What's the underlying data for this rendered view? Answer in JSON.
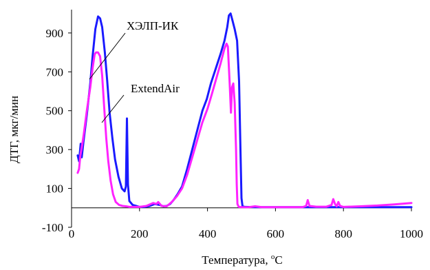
{
  "chart_data": {
    "type": "line",
    "title": "",
    "xlabel": "Температура, ",
    "xlabel_sup": "o",
    "xlabel_unit": "C",
    "ylabel": "ДТГ, мкг/мин",
    "xlim": [
      0,
      1000
    ],
    "ylim": [
      -100,
      1020
    ],
    "xticks": [
      "0",
      "200",
      "400",
      "600",
      "800",
      "1000"
    ],
    "yticks": [
      "-100",
      "100",
      "300",
      "500",
      "700",
      "900"
    ],
    "xtick_values": [
      0,
      200,
      400,
      600,
      800,
      1000
    ],
    "ytick_values": [
      -100,
      100,
      300,
      500,
      700,
      900
    ],
    "grid": false,
    "legend": "inline callouts",
    "series": [
      {
        "name": "ХЭЛП-ИК",
        "color": "#1a1aff",
        "points": [
          [
            18,
            270
          ],
          [
            22,
            240
          ],
          [
            27,
            330
          ],
          [
            30,
            260
          ],
          [
            35,
            340
          ],
          [
            45,
            480
          ],
          [
            55,
            640
          ],
          [
            62,
            780
          ],
          [
            70,
            920
          ],
          [
            78,
            985
          ],
          [
            84,
            975
          ],
          [
            90,
            930
          ],
          [
            98,
            800
          ],
          [
            105,
            650
          ],
          [
            112,
            490
          ],
          [
            120,
            360
          ],
          [
            128,
            250
          ],
          [
            138,
            160
          ],
          [
            148,
            100
          ],
          [
            156,
            85
          ],
          [
            160,
            110
          ],
          [
            163,
            460
          ],
          [
            166,
            120
          ],
          [
            170,
            35
          ],
          [
            180,
            15
          ],
          [
            190,
            10
          ],
          [
            200,
            5
          ],
          [
            215,
            5
          ],
          [
            230,
            10
          ],
          [
            245,
            20
          ],
          [
            260,
            15
          ],
          [
            270,
            8
          ],
          [
            280,
            10
          ],
          [
            290,
            20
          ],
          [
            300,
            40
          ],
          [
            312,
            70
          ],
          [
            325,
            110
          ],
          [
            340,
            200
          ],
          [
            355,
            300
          ],
          [
            370,
            400
          ],
          [
            385,
            500
          ],
          [
            398,
            560
          ],
          [
            410,
            640
          ],
          [
            425,
            720
          ],
          [
            438,
            790
          ],
          [
            450,
            860
          ],
          [
            458,
            930
          ],
          [
            463,
            990
          ],
          [
            468,
            1000
          ],
          [
            474,
            960
          ],
          [
            480,
            920
          ],
          [
            487,
            860
          ],
          [
            493,
            650
          ],
          [
            497,
            300
          ],
          [
            500,
            50
          ],
          [
            503,
            8
          ],
          [
            510,
            5
          ],
          [
            540,
            4
          ],
          [
            600,
            4
          ],
          [
            700,
            4
          ],
          [
            800,
            4
          ],
          [
            900,
            4
          ],
          [
            1000,
            4
          ]
        ]
      },
      {
        "name": "ExtendAir",
        "color": "#ff22ff",
        "points": [
          [
            18,
            180
          ],
          [
            22,
            200
          ],
          [
            26,
            270
          ],
          [
            30,
            310
          ],
          [
            36,
            380
          ],
          [
            45,
            500
          ],
          [
            55,
            620
          ],
          [
            62,
            720
          ],
          [
            68,
            790
          ],
          [
            72,
            800
          ],
          [
            78,
            800
          ],
          [
            84,
            780
          ],
          [
            90,
            680
          ],
          [
            96,
            520
          ],
          [
            102,
            360
          ],
          [
            108,
            240
          ],
          [
            115,
            140
          ],
          [
            122,
            70
          ],
          [
            130,
            30
          ],
          [
            140,
            15
          ],
          [
            150,
            10
          ],
          [
            160,
            8
          ],
          [
            170,
            5
          ],
          [
            200,
            5
          ],
          [
            220,
            10
          ],
          [
            240,
            25
          ],
          [
            250,
            20
          ],
          [
            255,
            30
          ],
          [
            265,
            10
          ],
          [
            280,
            8
          ],
          [
            295,
            30
          ],
          [
            310,
            60
          ],
          [
            325,
            100
          ],
          [
            340,
            170
          ],
          [
            355,
            260
          ],
          [
            370,
            350
          ],
          [
            385,
            440
          ],
          [
            400,
            510
          ],
          [
            412,
            580
          ],
          [
            425,
            660
          ],
          [
            438,
            740
          ],
          [
            450,
            820
          ],
          [
            456,
            845
          ],
          [
            460,
            830
          ],
          [
            465,
            650
          ],
          [
            469,
            490
          ],
          [
            472,
            620
          ],
          [
            476,
            640
          ],
          [
            480,
            540
          ],
          [
            484,
            300
          ],
          [
            486,
            120
          ],
          [
            488,
            20
          ],
          [
            492,
            5
          ],
          [
            500,
            4
          ],
          [
            520,
            3
          ],
          [
            540,
            8
          ],
          [
            560,
            4
          ],
          [
            600,
            4
          ],
          [
            680,
            4
          ],
          [
            690,
            10
          ],
          [
            695,
            40
          ],
          [
            700,
            10
          ],
          [
            720,
            6
          ],
          [
            750,
            6
          ],
          [
            765,
            15
          ],
          [
            770,
            45
          ],
          [
            775,
            20
          ],
          [
            780,
            8
          ],
          [
            785,
            30
          ],
          [
            790,
            10
          ],
          [
            800,
            5
          ],
          [
            850,
            8
          ],
          [
            900,
            12
          ],
          [
            950,
            18
          ],
          [
            1000,
            25
          ]
        ]
      }
    ]
  }
}
